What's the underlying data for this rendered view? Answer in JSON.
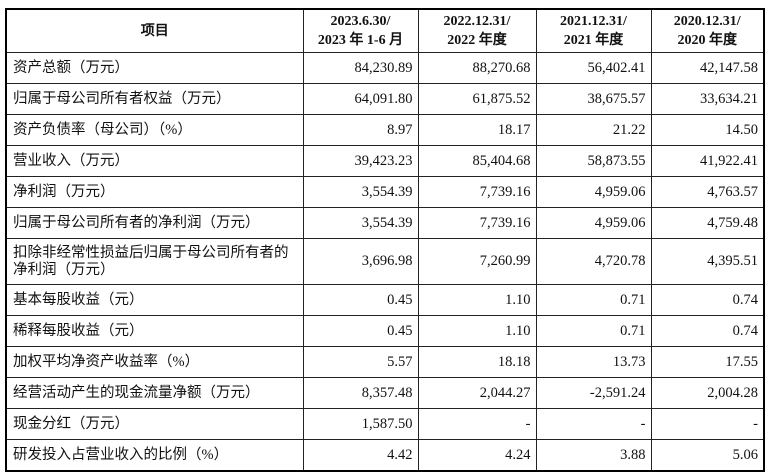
{
  "table": {
    "headers": [
      "项目",
      "2023.6.30/\n2023 年 1-6 月",
      "2022.12.31/\n2022 年度",
      "2021.12.31/\n2021 年度",
      "2020.12.31/\n2020 年度"
    ],
    "header_lines": [
      [
        "项目"
      ],
      [
        "2023.6.30/",
        "2023 年 1-6 月"
      ],
      [
        "2022.12.31/",
        "2022 年度"
      ],
      [
        "2021.12.31/",
        "2021 年度"
      ],
      [
        "2020.12.31/",
        "2020 年度"
      ]
    ],
    "rows": [
      {
        "label": "资产总额（万元）",
        "values": [
          "84,230.89",
          "88,270.68",
          "56,402.41",
          "42,147.58"
        ]
      },
      {
        "label": "归属于母公司所有者权益（万元）",
        "values": [
          "64,091.80",
          "61,875.52",
          "38,675.57",
          "33,634.21"
        ]
      },
      {
        "label": "资产负债率（母公司）（%）",
        "values": [
          "8.97",
          "18.17",
          "21.22",
          "14.50"
        ]
      },
      {
        "label": "营业收入（万元）",
        "values": [
          "39,423.23",
          "85,404.68",
          "58,873.55",
          "41,922.41"
        ]
      },
      {
        "label": "净利润（万元）",
        "values": [
          "3,554.39",
          "7,739.16",
          "4,959.06",
          "4,763.57"
        ]
      },
      {
        "label": "归属于母公司所有者的净利润（万元）",
        "values": [
          "3,554.39",
          "7,739.16",
          "4,959.06",
          "4,759.48"
        ]
      },
      {
        "label": "扣除非经常性损益后归属于母公司所有者的净利润（万元）",
        "values": [
          "3,696.98",
          "7,260.99",
          "4,720.78",
          "4,395.51"
        ]
      },
      {
        "label": "基本每股收益（元）",
        "values": [
          "0.45",
          "1.10",
          "0.71",
          "0.74"
        ]
      },
      {
        "label": "稀释每股收益（元）",
        "values": [
          "0.45",
          "1.10",
          "0.71",
          "0.74"
        ]
      },
      {
        "label": "加权平均净资产收益率（%）",
        "values": [
          "5.57",
          "18.18",
          "13.73",
          "17.55"
        ]
      },
      {
        "label": "经营活动产生的现金流量净额（万元）",
        "values": [
          "8,357.48",
          "2,044.27",
          "-2,591.24",
          "2,004.28"
        ]
      },
      {
        "label": "现金分红（万元）",
        "values": [
          "1,587.50",
          "-",
          "-",
          "-"
        ]
      },
      {
        "label": "研发投入占营业收入的比例（%）",
        "values": [
          "4.42",
          "4.24",
          "3.88",
          "5.06"
        ]
      }
    ]
  }
}
